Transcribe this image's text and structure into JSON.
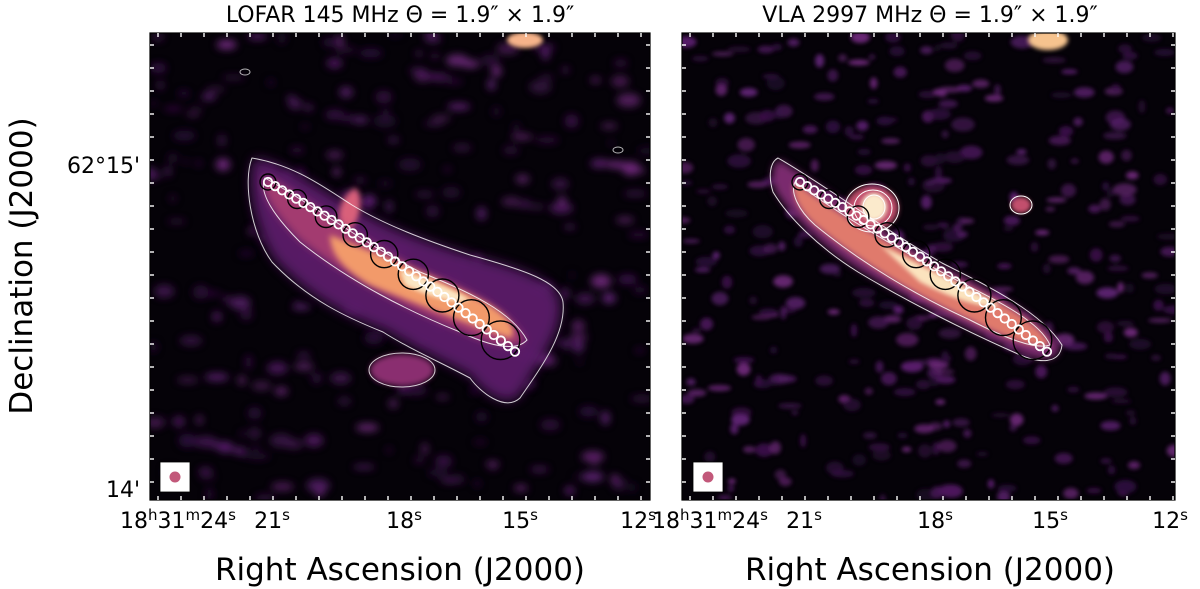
{
  "figure": {
    "ylabel": "Declination (J2000)",
    "xlabel": "Right Ascension (J2000)",
    "colormap": "magma",
    "contour_color": "#ffffff",
    "beam_marker_color": "#c2587a",
    "circle_color": "#000000",
    "dot_color": "#ffffff"
  },
  "panels": [
    {
      "title": "LOFAR 145 MHz Θ = 1.9″ × 1.9″",
      "ra_ticks": [
        {
          "h": "18",
          "m": "31",
          "s": "24"
        },
        {
          "s": "21"
        },
        {
          "s": "18"
        },
        {
          "s": "15"
        },
        {
          "s": "12"
        }
      ],
      "dec_ticks": [
        "62°15'",
        "14'"
      ]
    },
    {
      "title": "VLA 2997 MHz Θ = 1.9″ × 1.9″",
      "ra_ticks": [
        {
          "h": "18",
          "m": "31",
          "s": "24"
        },
        {
          "s": "21"
        },
        {
          "s": "18"
        },
        {
          "s": "15"
        },
        {
          "s": "12"
        }
      ],
      "dec_ticks": []
    }
  ]
}
